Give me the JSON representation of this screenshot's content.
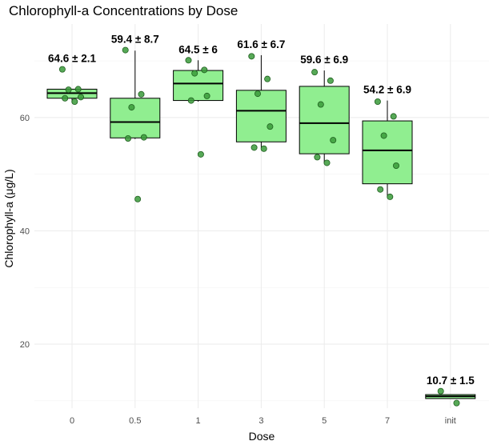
{
  "chart_data": {
    "type": "box",
    "title": "Chlorophyll-a Concentrations by Dose",
    "xlabel": "Dose",
    "ylabel": "Chlorophyll-a (μg/L)",
    "ylim": [
      8.7,
      76.5
    ],
    "y_ticks": [
      20,
      40,
      60
    ],
    "grid": true,
    "legend": "none",
    "colors": {
      "box_fill": "#90ee90",
      "box_stroke": "#000000",
      "point_fill": "#3a9a3a",
      "point_stroke": "#1f5f1f",
      "grid": "#ebebeb"
    },
    "categories": [
      "0",
      "0.5",
      "1",
      "3",
      "5",
      "7",
      "init"
    ],
    "boxes": [
      {
        "q1": 63.4,
        "median": 64.3,
        "q3": 65.0,
        "whisker_low": 62.7,
        "whisker_high": 65.0,
        "label": "64.6 ± 2.1"
      },
      {
        "q1": 56.4,
        "median": 59.2,
        "q3": 63.4,
        "whisker_low": 56.2,
        "whisker_high": 71.8,
        "label": "59.4 ± 8.7"
      },
      {
        "q1": 63.0,
        "median": 66.0,
        "q3": 68.3,
        "whisker_low": 62.8,
        "whisker_high": 70.1,
        "label": "64.5 ± 6"
      },
      {
        "q1": 55.7,
        "median": 61.2,
        "q3": 64.8,
        "whisker_low": 54.6,
        "whisker_high": 71.0,
        "label": "61.6 ± 6.7"
      },
      {
        "q1": 53.6,
        "median": 59.0,
        "q3": 65.5,
        "whisker_low": 52.0,
        "whisker_high": 68.3,
        "label": "59.6 ± 6.9"
      },
      {
        "q1": 48.3,
        "median": 54.2,
        "q3": 59.4,
        "whisker_low": 46.0,
        "whisker_high": 63.0,
        "label": "54.2 ± 6.9"
      },
      {
        "q1": 10.4,
        "median": 10.8,
        "q3": 11.1,
        "whisker_low": 10.4,
        "whisker_high": 11.1,
        "label": "10.7 ± 1.5"
      }
    ],
    "points": [
      {
        "category": "0",
        "values": [
          68.5,
          65.0,
          64.9,
          63.6,
          63.4,
          62.8
        ]
      },
      {
        "category": "0.5",
        "values": [
          71.9,
          64.1,
          61.8,
          56.5,
          56.3,
          45.6
        ]
      },
      {
        "category": "1",
        "values": [
          70.1,
          68.4,
          67.8,
          63.8,
          63.0,
          53.5
        ]
      },
      {
        "category": "3",
        "values": [
          70.8,
          66.8,
          64.2,
          58.4,
          54.7,
          54.5
        ]
      },
      {
        "category": "5",
        "values": [
          68.0,
          66.5,
          62.3,
          56.0,
          53.0,
          52.0
        ]
      },
      {
        "category": "7",
        "values": [
          62.8,
          60.2,
          56.8,
          51.5,
          47.3,
          46.0
        ]
      },
      {
        "category": "init",
        "values": [
          11.7,
          9.6
        ]
      }
    ]
  }
}
